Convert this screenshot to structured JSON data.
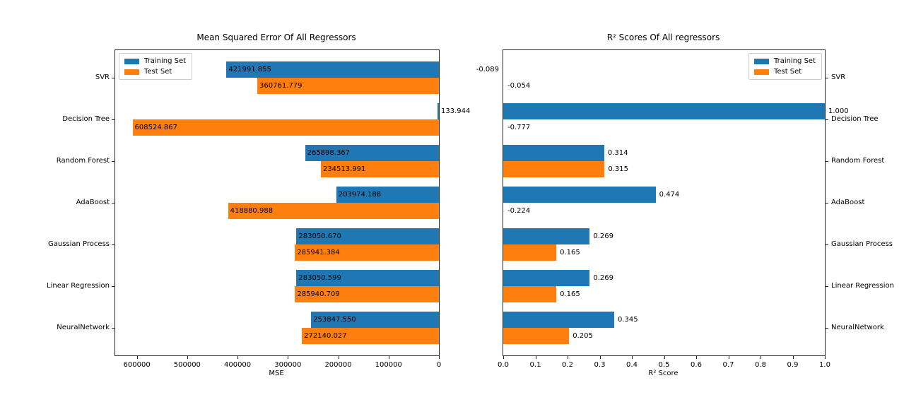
{
  "figure": {
    "background_color": "#ffffff",
    "accent_blue": "#1f77b4",
    "accent_orange": "#ff7f0e"
  },
  "chart_data": [
    {
      "type": "bar",
      "orientation": "horizontal",
      "title": "Mean Squared Error Of All Regressors",
      "xlabel": "MSE",
      "categories": [
        "SVR",
        "Decision Tree",
        "Random Forest",
        "AdaBoost",
        "Gaussian Process",
        "Linear Regression",
        "NeuralNetwork"
      ],
      "category_label_side": "left",
      "axis_max": 643000,
      "inverted_x": true,
      "grid": false,
      "legend_position": "upper-left",
      "x_ticks": [
        {
          "value": 600000,
          "label": "600000"
        },
        {
          "value": 500000,
          "label": "500000"
        },
        {
          "value": 400000,
          "label": "400000"
        },
        {
          "value": 300000,
          "label": "300000"
        },
        {
          "value": 200000,
          "label": "200000"
        },
        {
          "value": 100000,
          "label": "100000"
        },
        {
          "value": 0,
          "label": "0"
        }
      ],
      "series": [
        {
          "name": "Training Set",
          "color": "#1f77b4",
          "values": [
            421991.855,
            133.944,
            265898.367,
            203974.188,
            283050.67,
            283050.599,
            253847.55
          ],
          "labels": [
            "421991.855",
            "133.944",
            "265898.367",
            "203974.188",
            "283050.670",
            "283050.599",
            "253847.550"
          ]
        },
        {
          "name": "Test Set",
          "color": "#ff7f0e",
          "values": [
            360761.779,
            608524.867,
            234513.991,
            418880.988,
            285941.384,
            285940.709,
            272140.027
          ],
          "labels": [
            "360761.779",
            "608524.867",
            "234513.991",
            "418880.988",
            "285941.384",
            "285940.709",
            "272140.027"
          ]
        }
      ]
    },
    {
      "type": "bar",
      "orientation": "horizontal",
      "title": "R² Scores Of All regressors",
      "xlabel": "R² Score",
      "categories": [
        "SVR",
        "Decision Tree",
        "Random Forest",
        "AdaBoost",
        "Gaussian Process",
        "Linear Regression",
        "NeuralNetwork"
      ],
      "category_label_side": "right",
      "axis_max": 1.0,
      "inverted_x": false,
      "grid": false,
      "legend_position": "upper-right",
      "x_ticks": [
        {
          "value": 0.0,
          "label": "0.0"
        },
        {
          "value": 0.1,
          "label": "0.1"
        },
        {
          "value": 0.2,
          "label": "0.2"
        },
        {
          "value": 0.3,
          "label": "0.3"
        },
        {
          "value": 0.4,
          "label": "0.4"
        },
        {
          "value": 0.5,
          "label": "0.5"
        },
        {
          "value": 0.6,
          "label": "0.6"
        },
        {
          "value": 0.7,
          "label": "0.7"
        },
        {
          "value": 0.8,
          "label": "0.8"
        },
        {
          "value": 0.9,
          "label": "0.9"
        },
        {
          "value": 1.0,
          "label": "1.0"
        }
      ],
      "series": [
        {
          "name": "Training Set",
          "color": "#1f77b4",
          "values": [
            -0.089,
            1.0,
            0.314,
            0.474,
            0.269,
            0.269,
            0.345
          ],
          "labels": [
            "-0.089",
            "1.000",
            "0.314",
            "0.474",
            "0.269",
            "0.269",
            "0.345"
          ]
        },
        {
          "name": "Test Set",
          "color": "#ff7f0e",
          "values": [
            -0.054,
            -0.777,
            0.315,
            -0.224,
            0.165,
            0.165,
            0.205
          ],
          "labels": [
            "-0.054",
            "-0.777",
            "0.315",
            "-0.224",
            "0.165",
            "0.165",
            "0.205"
          ]
        }
      ]
    }
  ]
}
